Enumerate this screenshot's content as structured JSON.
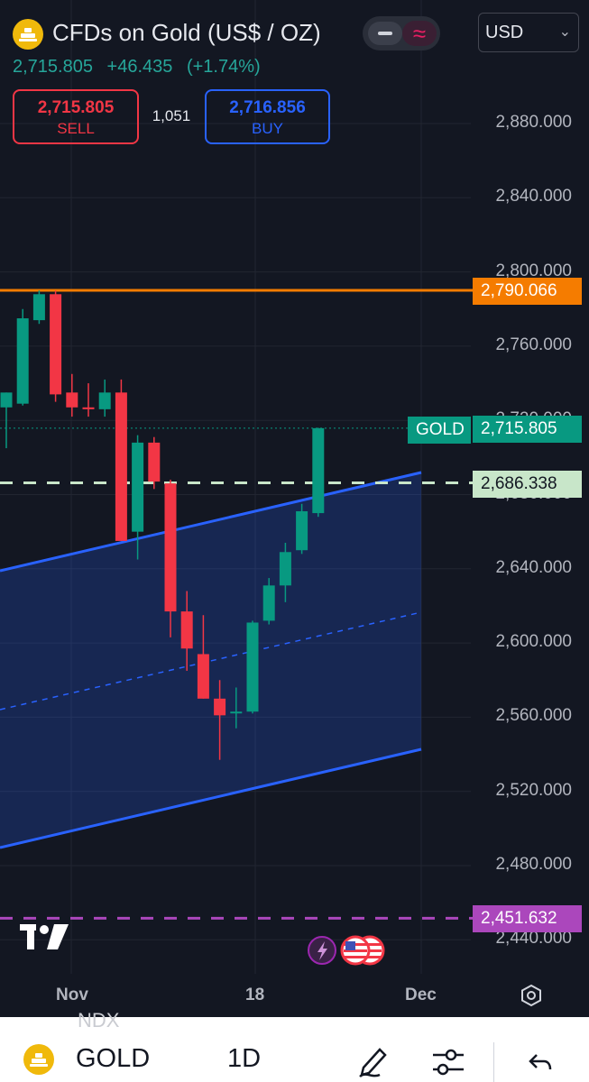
{
  "header": {
    "title": "CFDs on Gold (US$ / OZ)",
    "currency": "USD",
    "last_price": "2,715.805",
    "change": "+46.435",
    "change_pct": "(+1.74%)",
    "sell_price": "2,715.805",
    "sell_label": "SELL",
    "spread": "1,051",
    "buy_price": "2,716.856",
    "buy_label": "BUY",
    "pill_right_glyph": "≈"
  },
  "price_axis": {
    "labels": [
      "2,880.000",
      "2,840.000",
      "2,800.000",
      "2,760.000",
      "2,720.000",
      "2,680.000",
      "2,640.000",
      "2,600.000",
      "2,560.000",
      "2,520.000",
      "2,480.000",
      "2,440.000"
    ],
    "horizontal_line_tag": "2,790.066",
    "current_price_tag": "2,715.805",
    "symbol_tag": "GOLD",
    "alert_line_tag": "2,686.338",
    "bottom_line_tag": "2,451.632"
  },
  "time_axis": {
    "labels": [
      "Nov",
      "18",
      "Dec"
    ]
  },
  "colors": {
    "background": "#131722",
    "up": "#089981",
    "down": "#f23645",
    "channel": "#2962ff",
    "horizontal_line": "#f57c00",
    "alert_line": "#c8e6c9",
    "bottom_line": "#ab47bc"
  },
  "chart_data": {
    "type": "candlestick",
    "symbol": "GOLD",
    "timeframe": "1D",
    "ylim": [
      2430,
      2900
    ],
    "candles": [
      {
        "o": 2727,
        "h": 2735,
        "l": 2705,
        "c": 2735
      },
      {
        "o": 2729,
        "h": 2780,
        "l": 2728,
        "c": 2775
      },
      {
        "o": 2774,
        "h": 2790,
        "l": 2772,
        "c": 2788
      },
      {
        "o": 2788,
        "h": 2790,
        "l": 2730,
        "c": 2734
      },
      {
        "o": 2735,
        "h": 2745,
        "l": 2722,
        "c": 2727
      },
      {
        "o": 2727,
        "h": 2740,
        "l": 2722,
        "c": 2726
      },
      {
        "o": 2726,
        "h": 2742,
        "l": 2722,
        "c": 2735
      },
      {
        "o": 2735,
        "h": 2742,
        "l": 2655,
        "c": 2655
      },
      {
        "o": 2660,
        "h": 2712,
        "l": 2645,
        "c": 2708
      },
      {
        "o": 2708,
        "h": 2711,
        "l": 2683,
        "c": 2687
      },
      {
        "o": 2686,
        "h": 2688,
        "l": 2603,
        "c": 2617
      },
      {
        "o": 2617,
        "h": 2628,
        "l": 2585,
        "c": 2597
      },
      {
        "o": 2594,
        "h": 2615,
        "l": 2570,
        "c": 2570
      },
      {
        "o": 2570,
        "h": 2580,
        "l": 2537,
        "c": 2561
      },
      {
        "o": 2563,
        "h": 2576,
        "l": 2554,
        "c": 2563
      },
      {
        "o": 2563,
        "h": 2612,
        "l": 2562,
        "c": 2611
      },
      {
        "o": 2612,
        "h": 2635,
        "l": 2610,
        "c": 2631
      },
      {
        "o": 2631,
        "h": 2654,
        "l": 2622,
        "c": 2649
      },
      {
        "o": 2650,
        "h": 2675,
        "l": 2648,
        "c": 2671
      },
      {
        "o": 2670,
        "h": 2716,
        "l": 2668,
        "c": 2715.805
      }
    ],
    "horizontal_line": 2790.066,
    "alert_line": 2686.338,
    "bottom_line": 2451.632
  },
  "bottom_bar": {
    "symbol": "GOLD",
    "timeframe": "1D",
    "ghost_text": "NDX"
  }
}
